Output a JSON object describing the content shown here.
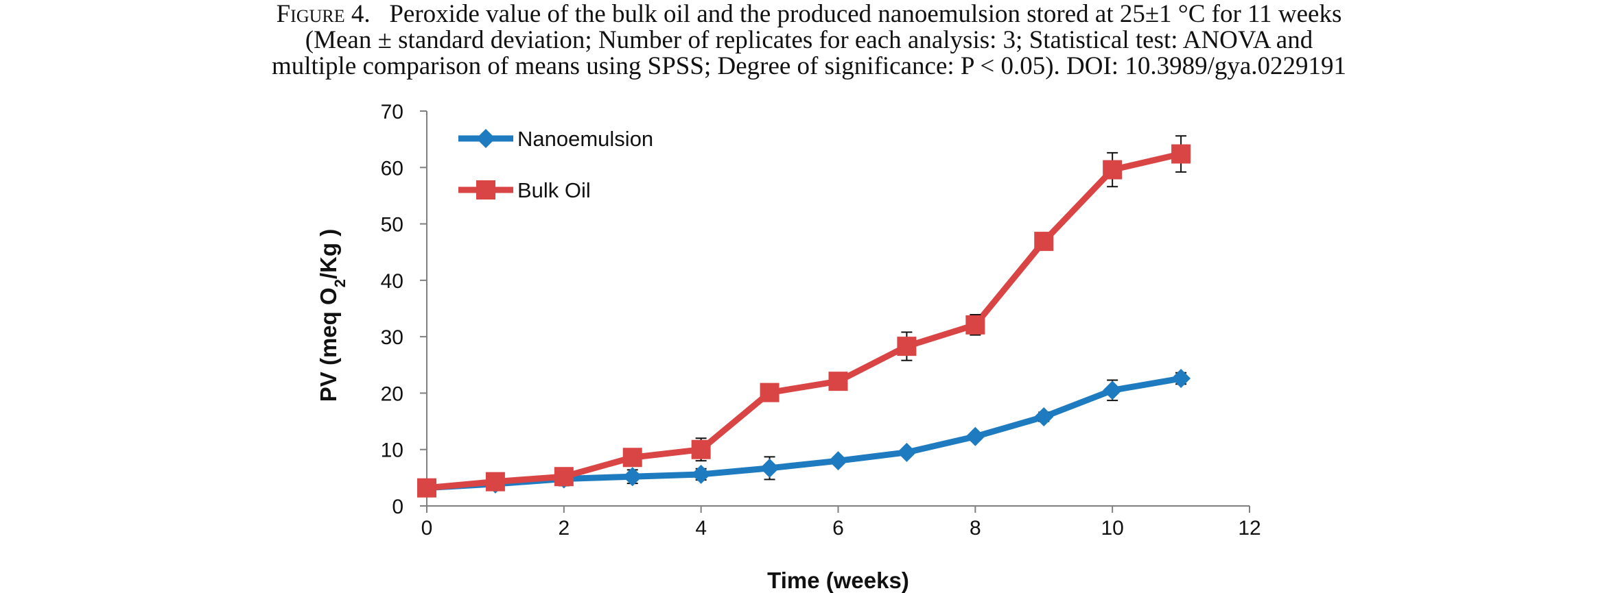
{
  "caption": {
    "figure_label": "Figure 4.",
    "line1": "Peroxide value of the bulk oil and the produced nanoemulsion stored at 25±1 °C for 11 weeks",
    "line2": "(Mean ± standard deviation; Number of replicates for each analysis: 3; Statistical test: ANOVA and",
    "line3": "multiple comparison of means using SPSS; Degree of significance: P < 0.05). DOI: 10.3989/gya.0229191"
  },
  "chart_data": {
    "type": "line",
    "xlabel": "Time (weeks)",
    "ylabel_parts": [
      "PV (meq O",
      "2",
      "/Kg )"
    ],
    "xlim": [
      0,
      12
    ],
    "ylim": [
      0,
      70
    ],
    "xticks": [
      0,
      2,
      4,
      6,
      8,
      10,
      12
    ],
    "yticks": [
      0,
      10,
      20,
      30,
      40,
      50,
      60,
      70
    ],
    "grid": false,
    "legend_position": "top-left",
    "series": [
      {
        "name": "Nanoemulsion",
        "color": "#1f7bc0",
        "marker": "diamond",
        "x": [
          0,
          1,
          2,
          3,
          4,
          5,
          6,
          7,
          8,
          9,
          10,
          11
        ],
        "y": [
          3.2,
          3.9,
          4.8,
          5.2,
          5.6,
          6.7,
          8.0,
          9.5,
          12.3,
          15.8,
          20.5,
          22.6
        ],
        "err": [
          0.3,
          0.4,
          1.2,
          1.2,
          1.0,
          2.0,
          0.6,
          0.5,
          0.6,
          0.8,
          1.8,
          1.0
        ]
      },
      {
        "name": "Bulk Oil",
        "color": "#d94545",
        "marker": "square",
        "x": [
          0,
          1,
          2,
          3,
          4,
          5,
          6,
          7,
          8,
          9,
          10,
          11
        ],
        "y": [
          3.2,
          4.3,
          5.2,
          8.6,
          10.0,
          20.1,
          22.1,
          28.3,
          32.1,
          46.9,
          59.6,
          62.4
        ],
        "err": [
          0.3,
          0.5,
          0.5,
          0.6,
          2.0,
          0.6,
          0.6,
          2.5,
          1.8,
          0.8,
          3.0,
          3.2
        ]
      }
    ]
  }
}
